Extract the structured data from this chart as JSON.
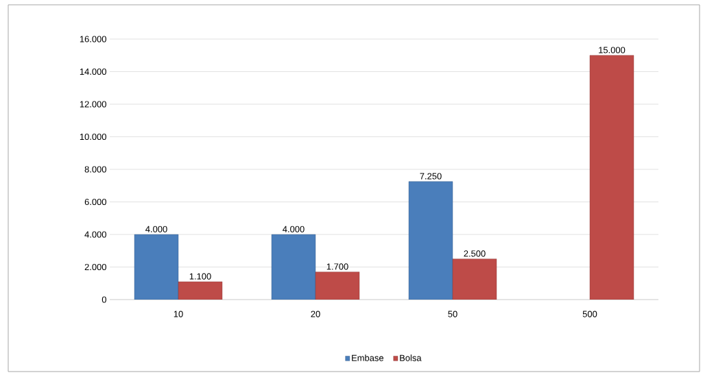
{
  "chart_data": {
    "type": "bar",
    "categories": [
      "10",
      "20",
      "50",
      "500"
    ],
    "series": [
      {
        "name": "Embase",
        "color": "#4a7ebb",
        "values": [
          4000,
          4000,
          7250,
          null
        ],
        "value_labels": [
          "4.000",
          "4.000",
          "7.250",
          null
        ]
      },
      {
        "name": "Bolsa",
        "color": "#be4b48",
        "values": [
          1100,
          1700,
          2500,
          15000
        ],
        "value_labels": [
          "1.100",
          "1.700",
          "2.500",
          "15.000"
        ]
      }
    ],
    "ylim": [
      0,
      16000
    ],
    "yticks": [
      {
        "value": 0,
        "label": "0"
      },
      {
        "value": 2000,
        "label": "2.000"
      },
      {
        "value": 4000,
        "label": "4.000"
      },
      {
        "value": 6000,
        "label": "6.000"
      },
      {
        "value": 8000,
        "label": "8.000"
      },
      {
        "value": 10000,
        "label": "10.000"
      },
      {
        "value": 12000,
        "label": "12.000"
      },
      {
        "value": 14000,
        "label": "14.000"
      },
      {
        "value": 16000,
        "label": "16.000"
      }
    ],
    "grid": "y",
    "legend": "bottom"
  }
}
